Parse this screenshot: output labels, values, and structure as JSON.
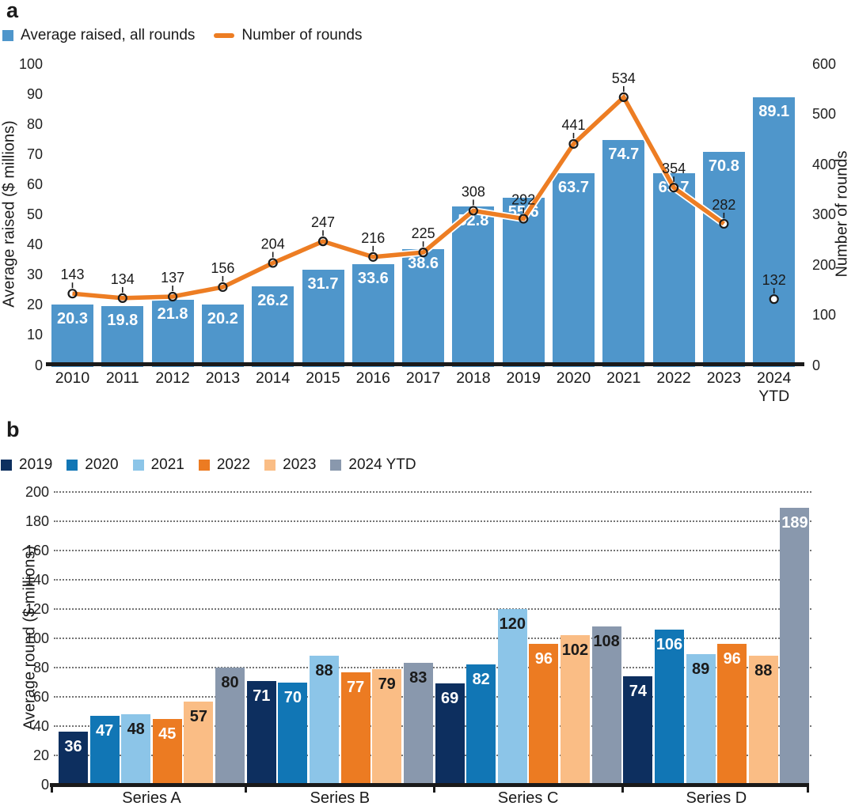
{
  "panels": {
    "a": {
      "label": "a"
    },
    "b": {
      "label": "b"
    }
  },
  "colors": {
    "bar_blue": "#4f96cb",
    "line_orange": "#ed7d23",
    "axis_black": "#1a1a1a",
    "grid_dot_gray": "#747474",
    "label_white": "#ffffff",
    "label_dark": "#1a1a1a"
  },
  "chart_data": [
    {
      "panel": "a",
      "type": "bar+line",
      "legend_position": "top-left",
      "grid": false,
      "categories": [
        "2010",
        "2011",
        "2012",
        "2013",
        "2014",
        "2015",
        "2016",
        "2017",
        "2018",
        "2019",
        "2020",
        "2021",
        "2022",
        "2023",
        "2024 YTD"
      ],
      "series": [
        {
          "name": "Average raised, all rounds",
          "chart": "bar",
          "color": "#4f96cb",
          "label_color": "#ffffff",
          "values": [
            20.3,
            19.8,
            21.8,
            20.2,
            26.2,
            31.7,
            33.6,
            38.6,
            52.8,
            55.6,
            63.7,
            74.7,
            63.7,
            70.8,
            89.1
          ]
        },
        {
          "name": "Number of rounds",
          "chart": "line",
          "color": "#ed7d23",
          "marker": "open-circle",
          "line_through_last_point": false,
          "values": [
            143,
            134,
            137,
            156,
            204,
            247,
            216,
            225,
            308,
            292,
            441,
            534,
            354,
            282,
            132
          ]
        }
      ],
      "ylabel_left": "Average raised ($ millions)",
      "ylim_left": [
        0,
        100
      ],
      "yticks_left": [
        0,
        10,
        20,
        30,
        40,
        50,
        60,
        70,
        80,
        90,
        100
      ],
      "ylabel_right": "Number of rounds",
      "ylim_right": [
        0,
        600
      ],
      "yticks_right": [
        0,
        100,
        200,
        300,
        400,
        500,
        600
      ]
    },
    {
      "panel": "b",
      "type": "grouped-bar",
      "legend_position": "top-left",
      "grid": "dotted-horizontal",
      "categories": [
        "Series A",
        "Series B",
        "Series C",
        "Series D"
      ],
      "series": [
        {
          "name": "2019",
          "color": "#0d2f5f",
          "values": [
            36,
            71,
            69,
            74
          ],
          "label_colors": [
            "#ffffff",
            "#ffffff",
            "#ffffff",
            "#ffffff"
          ]
        },
        {
          "name": "2020",
          "color": "#1176b5",
          "values": [
            47,
            70,
            82,
            106
          ],
          "label_colors": [
            "#ffffff",
            "#ffffff",
            "#ffffff",
            "#ffffff"
          ]
        },
        {
          "name": "2021",
          "color": "#8cc5e8",
          "values": [
            48,
            88,
            120,
            89
          ],
          "label_colors": [
            "#1a1a1a",
            "#1a1a1a",
            "#1a1a1a",
            "#1a1a1a"
          ]
        },
        {
          "name": "2022",
          "color": "#ec7b22",
          "values": [
            45,
            77,
            96,
            96
          ],
          "label_colors": [
            "#ffffff",
            "#ffffff",
            "#ffffff",
            "#ffffff"
          ]
        },
        {
          "name": "2023",
          "color": "#fabd85",
          "values": [
            57,
            79,
            102,
            88
          ],
          "label_colors": [
            "#1a1a1a",
            "#1a1a1a",
            "#1a1a1a",
            "#1a1a1a"
          ]
        },
        {
          "name": "2024 YTD",
          "color": "#8998ad",
          "values": [
            80,
            83,
            108,
            189
          ],
          "label_colors": [
            "#1a1a1a",
            "#1a1a1a",
            "#1a1a1a",
            "#ffffff"
          ]
        }
      ],
      "ylabel": "Average round ($ millions)",
      "ylim": [
        0,
        200
      ],
      "yticks": [
        0,
        20,
        40,
        60,
        80,
        100,
        120,
        140,
        160,
        180,
        200
      ]
    }
  ]
}
